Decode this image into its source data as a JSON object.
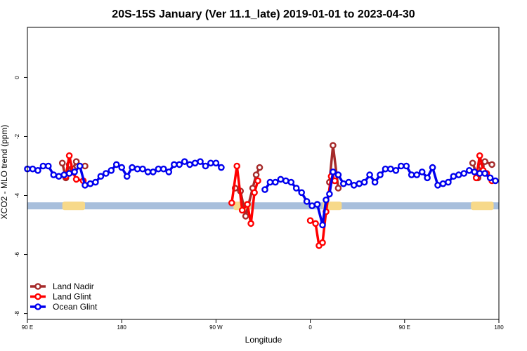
{
  "chart_data": {
    "type": "line",
    "title": "20S-15S January (Ver 11.1_late)   2019-01-01 to 2023-04-30",
    "xlabel": "Longitude",
    "ylabel": "XCO2 - MLO trend (ppm)",
    "xlim": [
      -90,
      180
    ],
    "ylim": [
      -8.2,
      1.7
    ],
    "x_ticks": [
      {
        "value": -90,
        "label": "90 E"
      },
      {
        "value": -36,
        "label": "180"
      },
      {
        "value": 18,
        "label": "90 W"
      },
      {
        "value": 72,
        "label": "0"
      },
      {
        "value": 126,
        "label": "90 E"
      },
      {
        "value": 180,
        "label": "180"
      }
    ],
    "y_ticks": [
      {
        "value": 0,
        "label": "0"
      },
      {
        "value": -2,
        "label": "-2"
      },
      {
        "value": -4,
        "label": "-4"
      },
      {
        "value": -6,
        "label": "-6"
      },
      {
        "value": -8,
        "label": "-8"
      }
    ],
    "surface_band": {
      "y": -4.35,
      "ocean_color": "#a8bfdc",
      "land_color": "#f7d98a",
      "land_ranges": [
        [
          -70,
          -57
        ],
        [
          28,
          38
        ],
        [
          79,
          90
        ],
        [
          164,
          177
        ]
      ]
    },
    "legend_position": "bottom-left",
    "series": [
      {
        "name": "Land Nadir",
        "color": "#a52a2a",
        "segments": [
          [
            [
              -70,
              -2.9
            ],
            [
              -68,
              -3.4
            ],
            [
              -66,
              -2.95
            ],
            [
              -64,
              -3.1
            ],
            [
              -62,
              -2.85
            ],
            [
              -60,
              -3.0
            ],
            [
              -57,
              -3.0
            ]
          ],
          [
            [
              29,
              -3.75
            ],
            [
              32,
              -3.85
            ],
            [
              35,
              -4.7
            ],
            [
              39,
              -3.75
            ],
            [
              41,
              -3.3
            ],
            [
              43,
              -3.05
            ]
          ],
          [
            [
              83,
              -3.55
            ],
            [
              85,
              -2.3
            ],
            [
              88,
              -3.75
            ]
          ],
          [
            [
              165,
              -2.9
            ],
            [
              168,
              -3.4
            ],
            [
              170,
              -3.0
            ],
            [
              172,
              -2.85
            ],
            [
              176,
              -2.95
            ]
          ]
        ]
      },
      {
        "name": "Land Glint",
        "color": "#ff0000",
        "segments": [
          [
            [
              -68,
              -3.35
            ],
            [
              -66,
              -2.65
            ],
            [
              -64,
              -3.2
            ],
            [
              -62,
              -3.45
            ],
            [
              -58,
              -3.5
            ]
          ],
          [
            [
              27,
              -4.25
            ],
            [
              30,
              -3.0
            ],
            [
              33,
              -4.5
            ],
            [
              36,
              -4.3
            ],
            [
              38,
              -4.95
            ],
            [
              40,
              -3.9
            ],
            [
              42,
              -3.5
            ]
          ],
          [
            [
              72,
              -4.85
            ],
            [
              75,
              -4.95
            ],
            [
              77,
              -5.7
            ],
            [
              79,
              -5.6
            ],
            [
              81,
              -4.55
            ],
            [
              84,
              -3.35
            ],
            [
              86,
              -3.5
            ]
          ],
          [
            [
              167,
              -3.4
            ],
            [
              169,
              -2.65
            ],
            [
              171,
              -3.15
            ],
            [
              173,
              -3.25
            ],
            [
              176,
              -3.5
            ]
          ]
        ]
      },
      {
        "name": "Ocean Glint",
        "color": "#0000ee",
        "segments": [
          [
            [
              -90,
              -3.1
            ],
            [
              -87,
              -3.1
            ],
            [
              -84,
              -3.15
            ],
            [
              -81,
              -3.0
            ],
            [
              -78,
              -3.0
            ],
            [
              -75,
              -3.3
            ],
            [
              -72,
              -3.35
            ],
            [
              -69,
              -3.3
            ],
            [
              -66,
              -3.25
            ],
            [
              -63,
              -3.2
            ],
            [
              -60,
              -3.0
            ],
            [
              -57,
              -3.65
            ],
            [
              -54,
              -3.6
            ],
            [
              -51,
              -3.55
            ],
            [
              -48,
              -3.35
            ],
            [
              -45,
              -3.25
            ],
            [
              -42,
              -3.15
            ],
            [
              -39,
              -2.95
            ],
            [
              -36,
              -3.05
            ],
            [
              -33,
              -3.35
            ],
            [
              -30,
              -3.05
            ],
            [
              -27,
              -3.1
            ],
            [
              -24,
              -3.1
            ],
            [
              -21,
              -3.2
            ],
            [
              -18,
              -3.2
            ],
            [
              -15,
              -3.1
            ],
            [
              -12,
              -3.1
            ],
            [
              -9,
              -3.2
            ],
            [
              -6,
              -2.95
            ],
            [
              -3,
              -2.95
            ],
            [
              0,
              -2.85
            ],
            [
              3,
              -2.95
            ],
            [
              6,
              -2.9
            ],
            [
              9,
              -2.85
            ],
            [
              12,
              -3.0
            ],
            [
              15,
              -2.9
            ],
            [
              18,
              -2.9
            ],
            [
              21,
              -3.05
            ]
          ],
          [
            [
              46,
              -3.8
            ],
            [
              49,
              -3.55
            ],
            [
              52,
              -3.55
            ],
            [
              55,
              -3.45
            ],
            [
              58,
              -3.5
            ],
            [
              61,
              -3.55
            ],
            [
              64,
              -3.75
            ],
            [
              67,
              -3.9
            ],
            [
              70,
              -4.2
            ],
            [
              73,
              -4.35
            ],
            [
              76,
              -4.3
            ],
            [
              79,
              -5.0
            ],
            [
              81,
              -4.15
            ],
            [
              83,
              -3.95
            ],
            [
              85,
              -3.2
            ],
            [
              88,
              -3.3
            ],
            [
              91,
              -3.6
            ],
            [
              94,
              -3.55
            ],
            [
              97,
              -3.65
            ],
            [
              100,
              -3.6
            ],
            [
              103,
              -3.55
            ],
            [
              106,
              -3.3
            ],
            [
              109,
              -3.55
            ],
            [
              112,
              -3.3
            ],
            [
              115,
              -3.1
            ],
            [
              118,
              -3.1
            ],
            [
              121,
              -3.15
            ],
            [
              124,
              -3.0
            ],
            [
              127,
              -3.0
            ],
            [
              130,
              -3.3
            ],
            [
              133,
              -3.3
            ],
            [
              136,
              -3.2
            ],
            [
              139,
              -3.4
            ],
            [
              142,
              -3.05
            ],
            [
              145,
              -3.65
            ],
            [
              148,
              -3.6
            ],
            [
              151,
              -3.55
            ],
            [
              154,
              -3.35
            ],
            [
              157,
              -3.3
            ],
            [
              160,
              -3.25
            ],
            [
              163,
              -3.15
            ],
            [
              166,
              -3.2
            ],
            [
              169,
              -3.25
            ],
            [
              172,
              -3.25
            ],
            [
              175,
              -3.4
            ],
            [
              178,
              -3.5
            ]
          ]
        ]
      }
    ]
  }
}
